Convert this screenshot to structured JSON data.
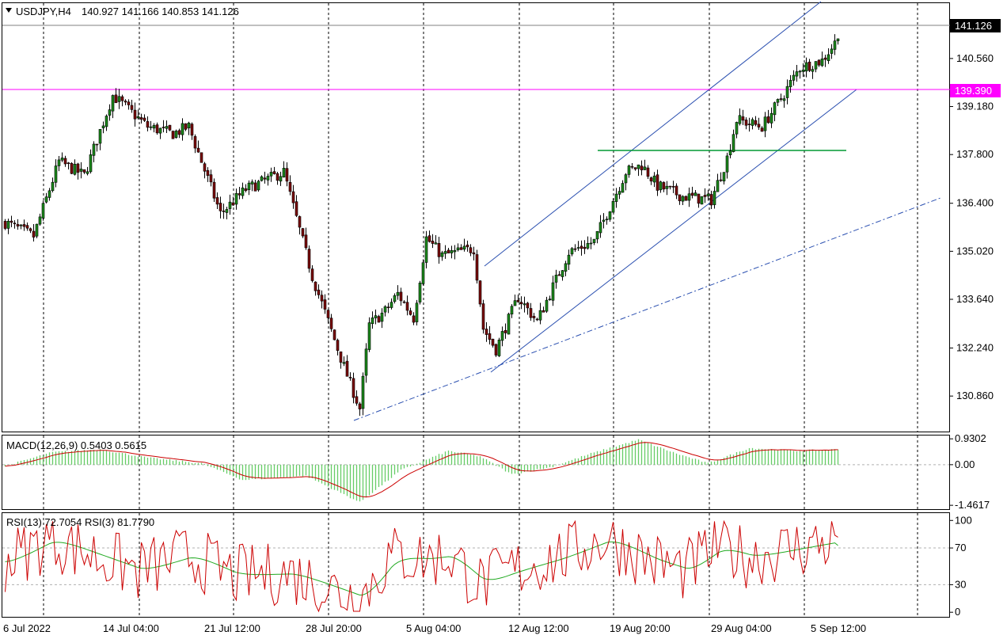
{
  "header": {
    "symbol": "USDJPY,H4",
    "ohlc": "140.927 141.166 140.853 141.126",
    "macd_label": "MACD(12,26,9) 0.5403 0.5615",
    "rsi_label": "RSI(13) 72.7054  RSI(3) 81.7790"
  },
  "colors": {
    "bull": "#1b8a1b",
    "bear": "#7a0a0a",
    "resistance": "#ff00ff",
    "support": "#009933",
    "channel": "#2a4fb0",
    "macd_hist": "#66cc66",
    "signal": "#cc0000",
    "rsi_fast": "#cc0000",
    "rsi_slow": "#22aa22"
  },
  "chart_data": {
    "type": "candlestick",
    "symbol": "USDJPY",
    "timeframe": "H4",
    "price_axis": {
      "ticks": [
        "140.560",
        "139.180",
        "137.800",
        "136.400",
        "135.020",
        "133.640",
        "132.240",
        "130.860"
      ],
      "range": [
        129.84,
        142.15
      ]
    },
    "current_price": "141.126",
    "resistance_level": "139.390",
    "support_level": 137.68,
    "time_axis": [
      "6 Jul 2022",
      "14 Jul 04:00",
      "21 Jul 12:00",
      "28 Jul 20:00",
      "5 Aug 04:00",
      "12 Aug 12:00",
      "19 Aug 20:00",
      "29 Aug 04:00",
      "5 Sep 12:00"
    ],
    "key_prices": [
      {
        "bar": 0,
        "price": 135.85
      },
      {
        "bar": 9,
        "price": 135.45
      },
      {
        "bar": 17,
        "price": 137.6
      },
      {
        "bar": 25,
        "price": 137.2
      },
      {
        "bar": 34,
        "price": 139.5
      },
      {
        "bar": 45,
        "price": 138.6
      },
      {
        "bar": 53,
        "price": 138.4
      },
      {
        "bar": 58,
        "price": 138.6
      },
      {
        "bar": 68,
        "price": 136.1
      },
      {
        "bar": 76,
        "price": 136.8
      },
      {
        "bar": 88,
        "price": 137.3
      },
      {
        "bar": 97,
        "price": 134.3
      },
      {
        "bar": 107,
        "price": 131.7
      },
      {
        "bar": 112,
        "price": 130.5
      },
      {
        "bar": 115,
        "price": 132.9
      },
      {
        "bar": 120,
        "price": 133.3
      },
      {
        "bar": 124,
        "price": 133.8
      },
      {
        "bar": 129,
        "price": 133.1
      },
      {
        "bar": 133,
        "price": 135.4
      },
      {
        "bar": 138,
        "price": 134.9
      },
      {
        "bar": 148,
        "price": 135.1
      },
      {
        "bar": 151,
        "price": 132.8
      },
      {
        "bar": 155,
        "price": 132.2
      },
      {
        "bar": 162,
        "price": 133.7
      },
      {
        "bar": 168,
        "price": 133.0
      },
      {
        "bar": 178,
        "price": 135.0
      },
      {
        "bar": 186,
        "price": 135.3
      },
      {
        "bar": 196,
        "price": 137.3
      },
      {
        "bar": 201,
        "price": 137.5
      },
      {
        "bar": 206,
        "price": 136.9
      },
      {
        "bar": 214,
        "price": 136.6
      },
      {
        "bar": 223,
        "price": 136.5
      },
      {
        "bar": 228,
        "price": 137.7
      },
      {
        "bar": 231,
        "price": 138.8
      },
      {
        "bar": 239,
        "price": 138.6
      },
      {
        "bar": 245,
        "price": 139.4
      },
      {
        "bar": 251,
        "price": 140.3
      },
      {
        "bar": 258,
        "price": 140.5
      },
      {
        "bar": 263,
        "price": 141.13
      }
    ],
    "macd": {
      "axis_ticks": [
        "0.9302",
        "0.00",
        "-1.4617"
      ],
      "range": [
        -1.6,
        1.05
      ],
      "keys": [
        {
          "bar": 0,
          "value": -0.05
        },
        {
          "bar": 15,
          "value": 0.45
        },
        {
          "bar": 30,
          "value": 0.55
        },
        {
          "bar": 45,
          "value": 0.25
        },
        {
          "bar": 62,
          "value": 0.05
        },
        {
          "bar": 75,
          "value": -0.55
        },
        {
          "bar": 95,
          "value": -0.4
        },
        {
          "bar": 112,
          "value": -1.35
        },
        {
          "bar": 125,
          "value": -0.2
        },
        {
          "bar": 140,
          "value": 0.5
        },
        {
          "bar": 150,
          "value": 0.3
        },
        {
          "bar": 160,
          "value": -0.35
        },
        {
          "bar": 172,
          "value": -0.1
        },
        {
          "bar": 185,
          "value": 0.4
        },
        {
          "bar": 200,
          "value": 0.9
        },
        {
          "bar": 212,
          "value": 0.4
        },
        {
          "bar": 222,
          "value": 0.05
        },
        {
          "bar": 235,
          "value": 0.6
        },
        {
          "bar": 250,
          "value": 0.5
        },
        {
          "bar": 263,
          "value": 0.55
        }
      ]
    },
    "rsi": {
      "axis_ticks": [
        "100",
        "70",
        "30",
        "0"
      ],
      "range": [
        -5,
        108
      ],
      "levels": [
        70,
        30
      ],
      "keys": [
        {
          "bar": 0,
          "value": 55
        },
        {
          "bar": 14,
          "value": 80
        },
        {
          "bar": 28,
          "value": 62
        },
        {
          "bar": 42,
          "value": 45
        },
        {
          "bar": 58,
          "value": 62
        },
        {
          "bar": 72,
          "value": 40
        },
        {
          "bar": 90,
          "value": 42
        },
        {
          "bar": 108,
          "value": 20
        },
        {
          "bar": 112,
          "value": 15
        },
        {
          "bar": 122,
          "value": 62
        },
        {
          "bar": 133,
          "value": 58
        },
        {
          "bar": 140,
          "value": 62
        },
        {
          "bar": 150,
          "value": 30
        },
        {
          "bar": 160,
          "value": 45
        },
        {
          "bar": 175,
          "value": 60
        },
        {
          "bar": 190,
          "value": 80
        },
        {
          "bar": 205,
          "value": 55
        },
        {
          "bar": 215,
          "value": 45
        },
        {
          "bar": 225,
          "value": 72
        },
        {
          "bar": 235,
          "value": 60
        },
        {
          "bar": 250,
          "value": 70
        },
        {
          "bar": 263,
          "value": 78
        }
      ]
    }
  }
}
